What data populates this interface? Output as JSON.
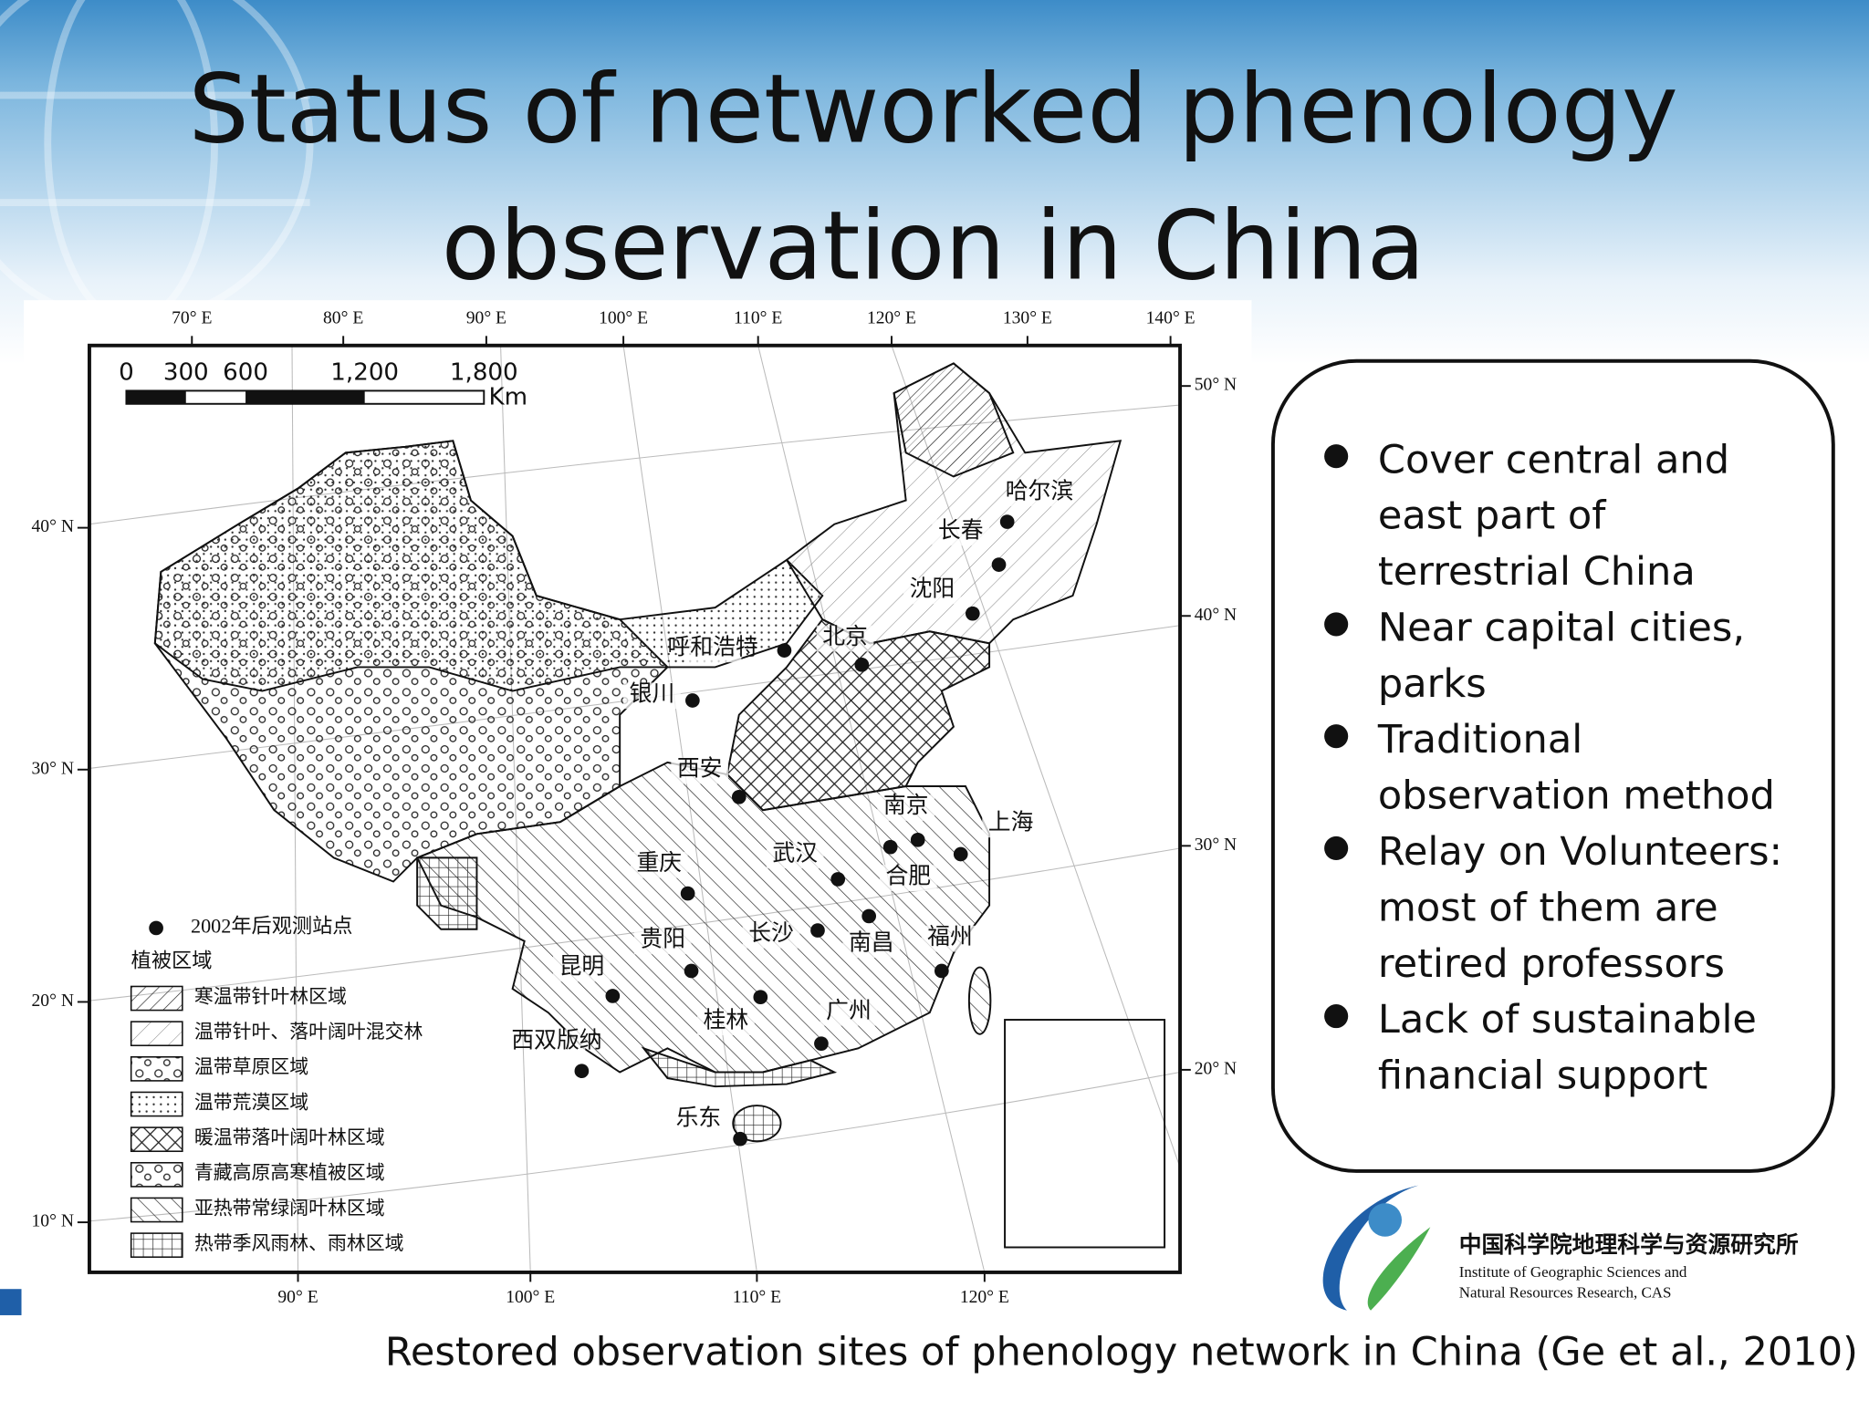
{
  "header": {
    "title_lines": [
      "Status of networked phenology",
      "observation in China"
    ]
  },
  "map": {
    "top_longitudes": [
      "70° E",
      "80° E",
      "90° E",
      "100° E",
      "110° E",
      "120° E",
      "130° E",
      "140° E"
    ],
    "bottom_longitudes": [
      "90° E",
      "100° E",
      "110° E",
      "120° E"
    ],
    "left_latitudes": [
      "40° N",
      "30° N",
      "20° N",
      "10° N"
    ],
    "right_latitudes": [
      "50° N",
      "40° N",
      "30° N",
      "20° N"
    ],
    "scale_bar": {
      "ticks": [
        "0",
        "300",
        "600",
        "1,200",
        "1,800"
      ],
      "unit": "Km"
    },
    "cities": [
      "哈尔滨",
      "长春",
      "沈阳",
      "北京",
      "呼和浩特",
      "银川",
      "西安",
      "南京",
      "上海",
      "合肥",
      "武汉",
      "重庆",
      "长沙",
      "南昌",
      "福州",
      "贵阳",
      "昆明",
      "桂林",
      "广州",
      "西双版纳",
      "乐东"
    ],
    "legend": {
      "site_label": "2002年后观测站点",
      "heading": "植被区域",
      "items": [
        "寒温带针叶林区域",
        "温带针叶、落叶阔叶混交林",
        "温带草原区域",
        "温带荒漠区域",
        "暖温带落叶阔叶林区域",
        "青藏高原高寒植被区域",
        "亚热带常绿阔叶林区域",
        "热带季风雨林、雨林区域"
      ]
    }
  },
  "bullets": [
    [
      "Cover central and",
      "east part of",
      "terrestrial China"
    ],
    [
      "Near capital cities,",
      "parks"
    ],
    [
      "Traditional",
      "observation method"
    ],
    [
      "Relay on Volunteers:",
      "most of them are",
      "retired professors"
    ],
    [
      "Lack of sustainable",
      "financial support"
    ]
  ],
  "logo": {
    "chinese": "中国科学院地理科学与资源研究所",
    "english_lines": [
      "Institute of Geographic Sciences and",
      "Natural Resources Research, CAS"
    ]
  },
  "caption": "Restored observation sites of phenology network in China (Ge et al., 2010)"
}
